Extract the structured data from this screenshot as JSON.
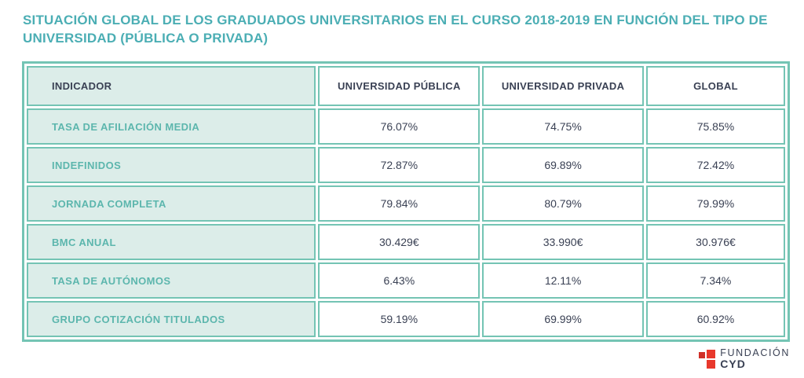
{
  "title": "SITUACIÓN GLOBAL DE LOS GRADUADOS UNIVERSITARIOS EN EL CURSO 2018-2019 EN FUNCIÓN DEL TIPO DE UNIVERSIDAD (PÚBLICA O PRIVADA)",
  "chart_data": {
    "type": "table",
    "title": "SITUACIÓN GLOBAL DE LOS GRADUADOS UNIVERSITARIOS EN EL CURSO 2018-2019 EN FUNCIÓN DEL TIPO DE UNIVERSIDAD (PÚBLICA O PRIVADA)",
    "columns": [
      "INDICADOR",
      "UNIVERSIDAD PÚBLICA",
      "UNIVERSIDAD PRIVADA",
      "GLOBAL"
    ],
    "rows": [
      [
        "TASA DE AFILIACIÓN MEDIA",
        "76.07%",
        "74.75%",
        "75.85%"
      ],
      [
        "INDEFINIDOS",
        "72.87%",
        "69.89%",
        "72.42%"
      ],
      [
        "JORNADA COMPLETA",
        "79.84%",
        "80.79%",
        "79.99%"
      ],
      [
        "BMC ANUAL",
        "30.429€",
        "33.990€",
        "30.976€"
      ],
      [
        "TASA DE AUTÓNOMOS",
        "6.43%",
        "12.11%",
        "7.34%"
      ],
      [
        "GRUPO COTIZACIÓN TITULADOS",
        "59.19%",
        "69.99%",
        "60.92%"
      ]
    ]
  },
  "logo": {
    "name": "FUNDACIÓN",
    "acronym": "CYD"
  },
  "colors": {
    "title_teal": "#4BAEB4",
    "border_teal": "#74C4B4",
    "label_teal": "#5CB6AD",
    "label_cell_bg": "#DCEDE9",
    "text_dark": "#3A4154",
    "logo_red": "#E8382C",
    "logo_red_dark": "#D03028"
  }
}
